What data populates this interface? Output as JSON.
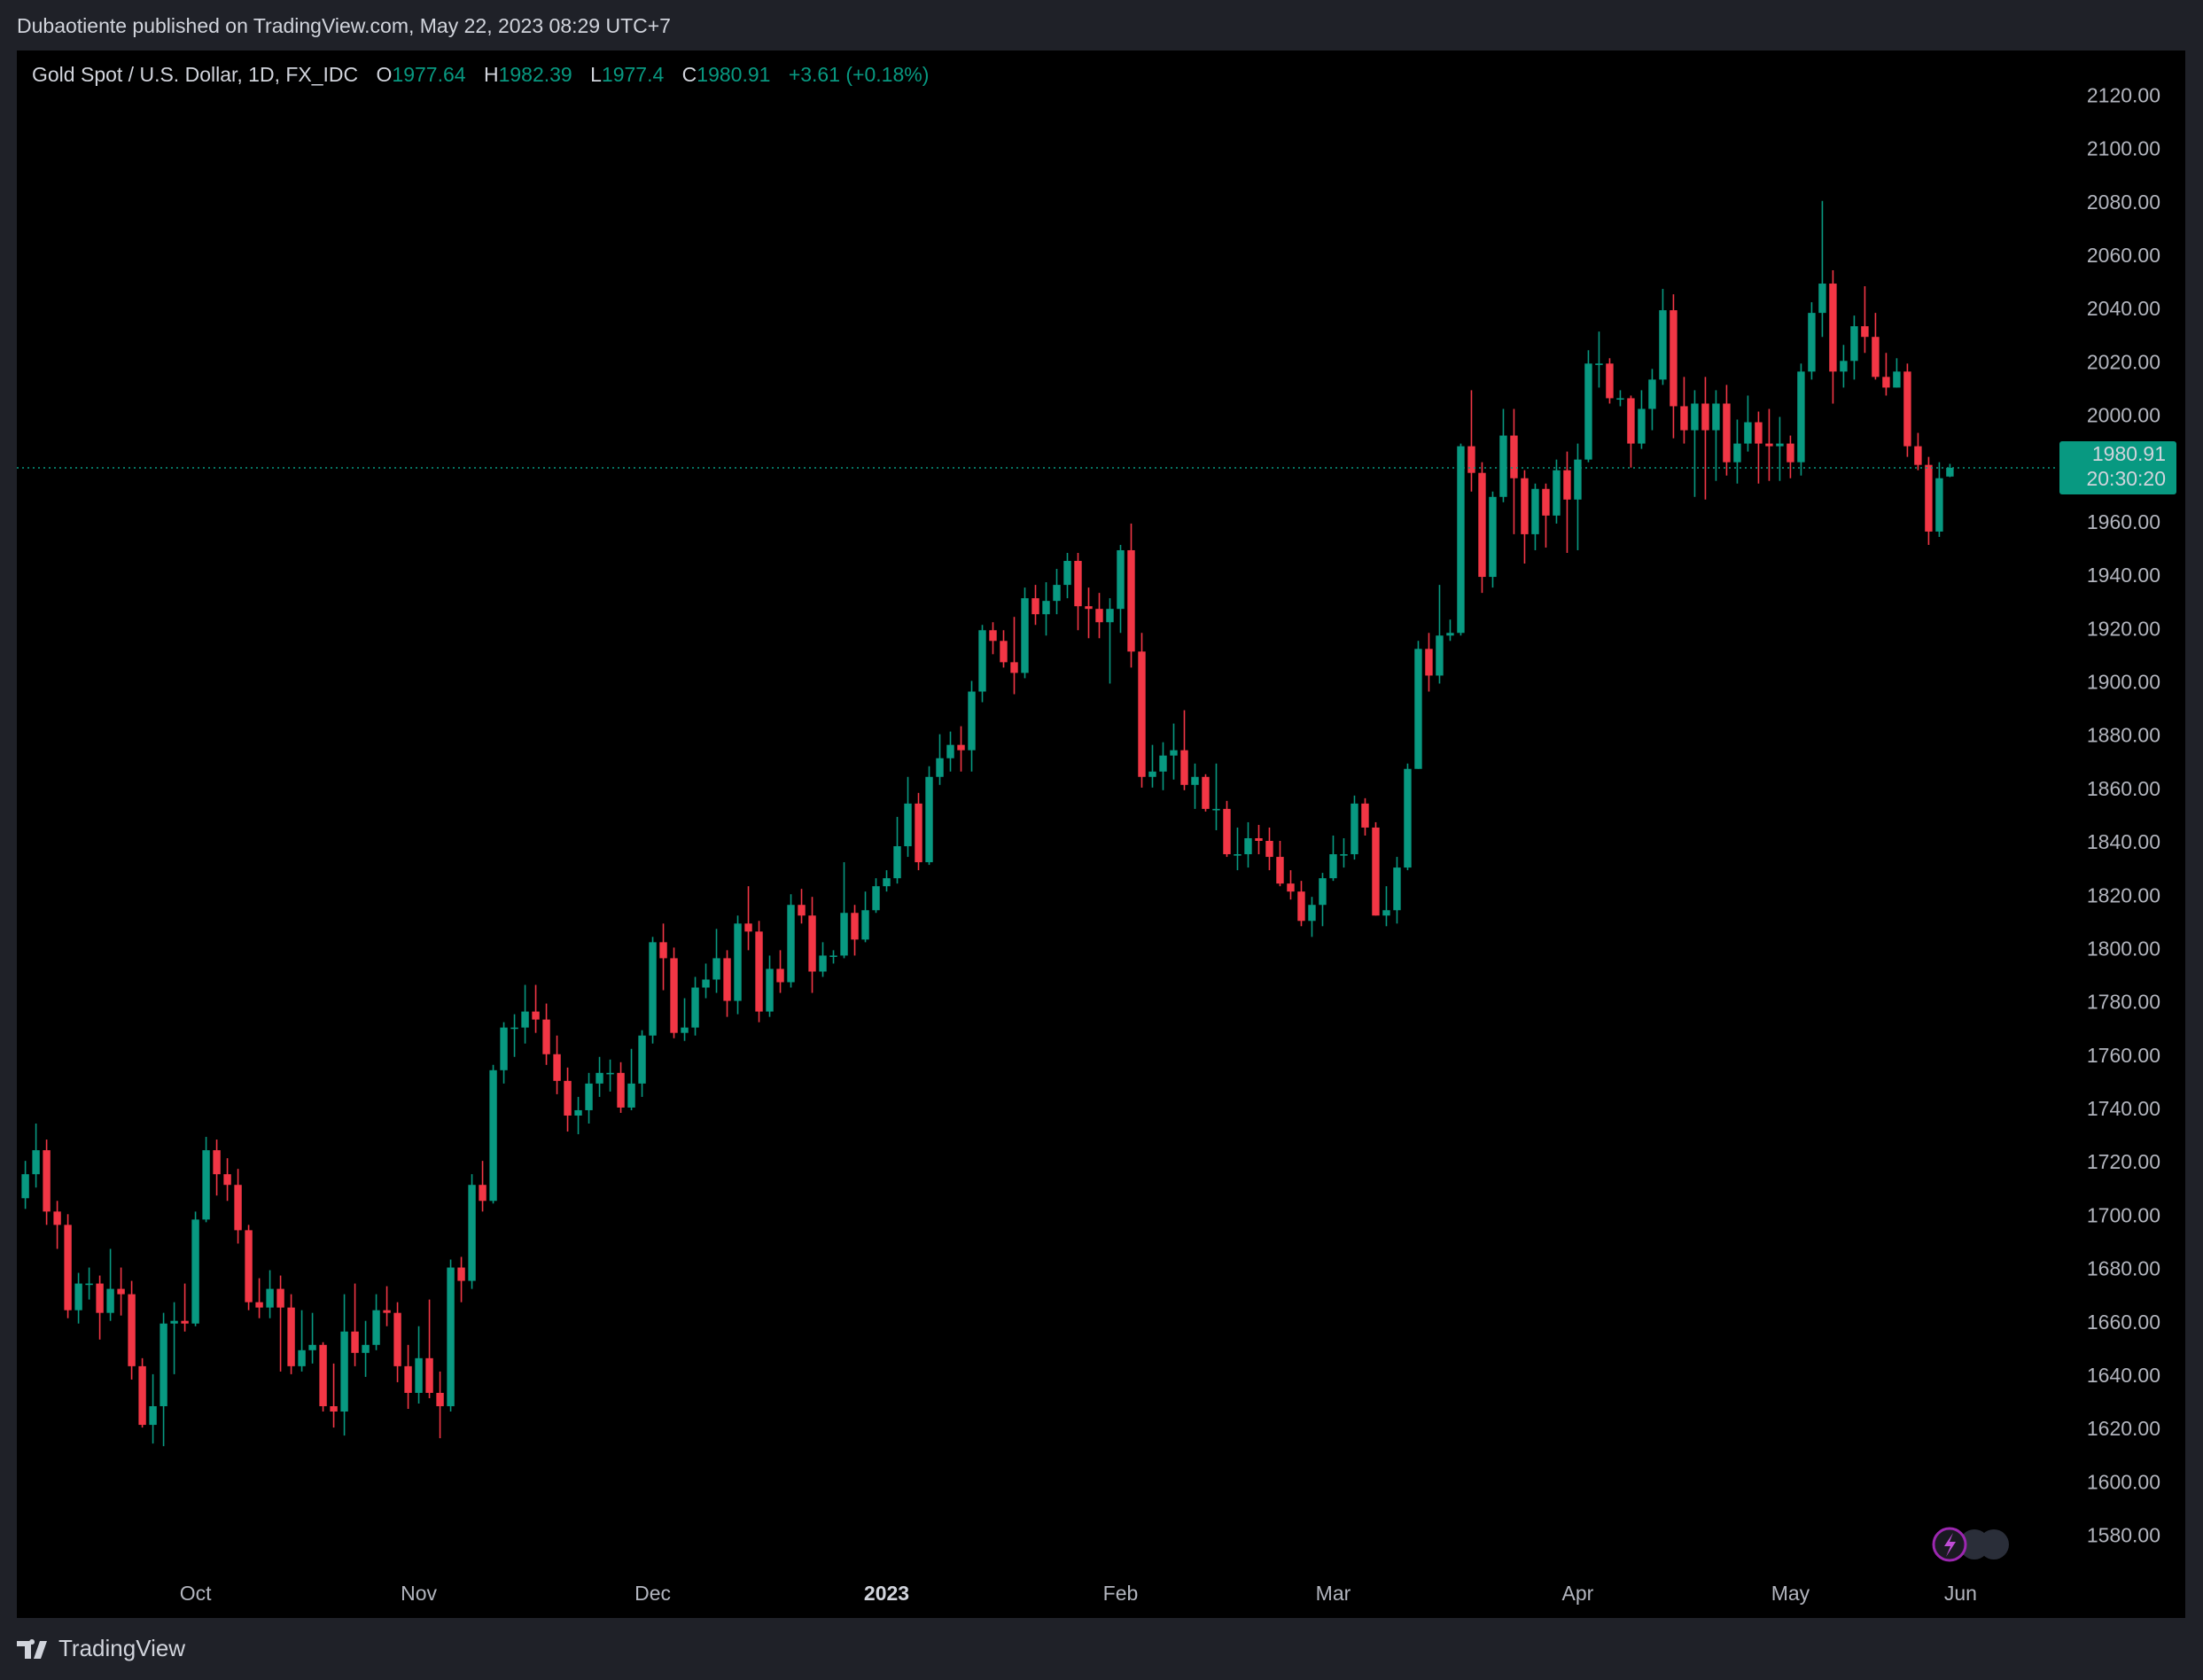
{
  "published": "Dubaotiente published on TradingView.com, May 22, 2023 08:29 UTC+7",
  "brand": "TradingView",
  "chart_data": {
    "type": "candlestick",
    "title": "Gold Spot / U.S. Dollar, 1D, FX_IDC",
    "ohlc_labels": [
      "O",
      "H",
      "L",
      "C"
    ],
    "change_label": "+3.61 (+0.18%)",
    "countdown": "20:30:20",
    "up_color": "#089981",
    "down_color": "#f23645",
    "open": [
      1707,
      1716,
      1725,
      1702,
      1697,
      1665,
      1675,
      1675,
      1664,
      1673,
      1671,
      1644,
      1622,
      1629,
      1660,
      1661,
      1660,
      1699,
      1725,
      1716,
      1712,
      1695,
      1668,
      1666,
      1673,
      1666,
      1644,
      1650,
      1652,
      1629,
      1627,
      1657,
      1649,
      1652,
      1665,
      1664,
      1644,
      1634,
      1647,
      1634,
      1629,
      1681,
      1676,
      1712,
      1706,
      1755,
      1771,
      1771,
      1777,
      1774,
      1761,
      1751,
      1738,
      1740,
      1750,
      1754,
      1754,
      1741,
      1750,
      1768,
      1803,
      1797,
      1769,
      1771,
      1786,
      1789,
      1797,
      1781,
      1810,
      1807,
      1777,
      1793,
      1788,
      1817,
      1813,
      1792,
      1798,
      1798,
      1814,
      1804,
      1815,
      1824,
      1827,
      1839,
      1855,
      1833,
      1865,
      1872,
      1877,
      1875,
      1897,
      1920,
      1916,
      1908,
      1904,
      1932,
      1926,
      1931,
      1937,
      1946,
      1929,
      1928,
      1923,
      1928,
      1950,
      1912,
      1865,
      1867,
      1873,
      1875,
      1862,
      1865,
      1853,
      1853,
      1836,
      1836,
      1842,
      1841,
      1835,
      1825,
      1822,
      1811,
      1817,
      1827,
      1836,
      1836,
      1855,
      1846,
      1813,
      1815,
      1831,
      1868,
      1913,
      1903,
      1918,
      1919,
      1989,
      1979,
      1940,
      1970,
      1993,
      1977,
      1956,
      1973,
      1963,
      1980,
      1969,
      1984,
      2020,
      2020,
      2007,
      2007,
      1990,
      2003,
      2014,
      2040,
      2004,
      1995,
      2005,
      1995,
      2005,
      1983,
      1990,
      1998,
      1990,
      1989,
      1990,
      1983,
      2017,
      2039,
      2050,
      2017,
      2021,
      2034,
      2030,
      2015,
      2011,
      2017,
      1989,
      1982,
      1957,
      1977.64
    ],
    "high": [
      1721,
      1735,
      1729,
      1706,
      1701,
      1679,
      1681,
      1678,
      1688,
      1681,
      1676,
      1647,
      1641,
      1664,
      1668,
      1675,
      1702,
      1730,
      1729,
      1722,
      1718,
      1697,
      1677,
      1680,
      1678,
      1671,
      1665,
      1664,
      1653,
      1645,
      1671,
      1675,
      1661,
      1671,
      1674,
      1668,
      1652,
      1659,
      1669,
      1642,
      1684,
      1685,
      1716,
      1721,
      1757,
      1773,
      1776,
      1787,
      1787,
      1780,
      1768,
      1756,
      1745,
      1754,
      1760,
      1759,
      1758,
      1763,
      1770,
      1805,
      1810,
      1801,
      1782,
      1790,
      1795,
      1808,
      1800,
      1813,
      1824,
      1811,
      1798,
      1800,
      1821,
      1823,
      1820,
      1803,
      1800,
      1833,
      1817,
      1822,
      1827,
      1830,
      1850,
      1865,
      1859,
      1869,
      1881,
      1882,
      1884,
      1901,
      1922,
      1923,
      1920,
      1925,
      1936,
      1937,
      1938,
      1943,
      1949,
      1949,
      1936,
      1934,
      1932,
      1952,
      1960,
      1919,
      1877,
      1878,
      1885,
      1890,
      1870,
      1866,
      1870,
      1856,
      1846,
      1848,
      1847,
      1846,
      1841,
      1830,
      1826,
      1820,
      1829,
      1843,
      1842,
      1858,
      1857,
      1848,
      1824,
      1835,
      1870,
      1916,
      1919,
      1937,
      1924,
      1990,
      2010,
      1983,
      1972,
      2003,
      2003,
      1980,
      1975,
      1975,
      1984,
      1987,
      1990,
      2025,
      2032,
      2022,
      2010,
      2008,
      2010,
      2018,
      2048,
      2046,
      2015,
      2010,
      2015,
      2010,
      2012,
      1999,
      2008,
      2002,
      2003,
      2000,
      1993,
      2020,
      2043,
      2081,
      2055,
      2027,
      2038,
      2049,
      2039,
      2024,
      2022,
      2020,
      1994,
      1985,
      1983,
      1982.39
    ],
    "low": [
      1703,
      1711,
      1697,
      1688,
      1662,
      1660,
      1669,
      1654,
      1661,
      1663,
      1639,
      1621,
      1615,
      1614,
      1641,
      1657,
      1659,
      1698,
      1708,
      1706,
      1690,
      1665,
      1662,
      1662,
      1642,
      1641,
      1642,
      1645,
      1627,
      1621,
      1618,
      1644,
      1640,
      1650,
      1659,
      1638,
      1628,
      1630,
      1632,
      1617,
      1627,
      1668,
      1673,
      1702,
      1705,
      1750,
      1760,
      1765,
      1769,
      1757,
      1746,
      1732,
      1731,
      1735,
      1745,
      1747,
      1739,
      1740,
      1745,
      1765,
      1785,
      1767,
      1766,
      1768,
      1782,
      1784,
      1775,
      1776,
      1800,
      1773,
      1775,
      1784,
      1786,
      1810,
      1784,
      1790,
      1795,
      1797,
      1798,
      1803,
      1814,
      1822,
      1825,
      1835,
      1830,
      1832,
      1862,
      1867,
      1867,
      1867,
      1893,
      1911,
      1906,
      1896,
      1902,
      1922,
      1918,
      1926,
      1932,
      1920,
      1917,
      1917,
      1900,
      1919,
      1906,
      1861,
      1861,
      1860,
      1864,
      1860,
      1853,
      1852,
      1845,
      1835,
      1830,
      1831,
      1836,
      1830,
      1824,
      1819,
      1809,
      1805,
      1809,
      1826,
      1831,
      1834,
      1843,
      1813,
      1809,
      1810,
      1830,
      1868,
      1897,
      1900,
      1916,
      1918,
      1972,
      1934,
      1936,
      1968,
      1956,
      1945,
      1950,
      1951,
      1960,
      1949,
      1950,
      1983,
      2011,
      2005,
      2004,
      1981,
      1988,
      1995,
      2012,
      1992,
      1990,
      1970,
      1969,
      1976,
      1978,
      1975,
      1987,
      1975,
      1976,
      1976,
      1977,
      1978,
      2014,
      2030,
      2005,
      2011,
      2014,
      2024,
      2014,
      2008,
      2011,
      1985,
      1980,
      1952,
      1955,
      1977.4
    ],
    "close": [
      1716,
      1725,
      1702,
      1697,
      1665,
      1675,
      1675,
      1664,
      1673,
      1671,
      1644,
      1622,
      1629,
      1660,
      1661,
      1660,
      1699,
      1725,
      1716,
      1712,
      1695,
      1668,
      1666,
      1673,
      1666,
      1644,
      1650,
      1652,
      1629,
      1627,
      1657,
      1649,
      1652,
      1665,
      1664,
      1644,
      1634,
      1647,
      1634,
      1629,
      1681,
      1676,
      1712,
      1706,
      1755,
      1771,
      1771,
      1777,
      1774,
      1761,
      1751,
      1738,
      1740,
      1750,
      1754,
      1754,
      1741,
      1750,
      1768,
      1803,
      1797,
      1769,
      1771,
      1786,
      1789,
      1797,
      1781,
      1810,
      1807,
      1777,
      1793,
      1788,
      1817,
      1813,
      1792,
      1798,
      1798,
      1814,
      1804,
      1815,
      1824,
      1827,
      1839,
      1855,
      1833,
      1865,
      1872,
      1877,
      1875,
      1897,
      1920,
      1916,
      1908,
      1904,
      1932,
      1926,
      1931,
      1937,
      1946,
      1929,
      1928,
      1923,
      1928,
      1950,
      1912,
      1865,
      1867,
      1873,
      1875,
      1862,
      1865,
      1853,
      1853,
      1836,
      1836,
      1842,
      1841,
      1835,
      1825,
      1822,
      1811,
      1817,
      1827,
      1836,
      1836,
      1855,
      1846,
      1813,
      1815,
      1831,
      1868,
      1913,
      1903,
      1918,
      1919,
      1989,
      1979,
      1940,
      1970,
      1993,
      1977,
      1956,
      1973,
      1963,
      1980,
      1969,
      1984,
      2020,
      2020,
      2007,
      2007,
      1990,
      2003,
      2014,
      2040,
      2004,
      1995,
      2005,
      1995,
      2005,
      1983,
      1990,
      1998,
      1990,
      1989,
      1990,
      1983,
      2017,
      2039,
      2050,
      2017,
      2021,
      2034,
      2030,
      2015,
      2011,
      2017,
      1989,
      1982,
      1957,
      1977,
      1980.91
    ],
    "xlim": [
      -0.8,
      190.8
    ],
    "xticks": [
      {
        "value": 16,
        "label": "Oct"
      },
      {
        "value": 37,
        "label": "Nov"
      },
      {
        "value": 59,
        "label": "Dec"
      },
      {
        "value": 81,
        "label": "2023"
      },
      {
        "value": 103,
        "label": "Feb"
      },
      {
        "value": 123,
        "label": "Mar"
      },
      {
        "value": 146,
        "label": "Apr"
      },
      {
        "value": 166,
        "label": "May"
      },
      {
        "value": 182,
        "label": "Jun"
      }
    ],
    "ylim": [
      1566.2,
      2137.4
    ],
    "yticks": [
      {
        "value": 1580,
        "label": "1580.00"
      },
      {
        "value": 1600,
        "label": "1600.00"
      },
      {
        "value": 1620,
        "label": "1620.00"
      },
      {
        "value": 1640,
        "label": "1640.00"
      },
      {
        "value": 1660,
        "label": "1660.00"
      },
      {
        "value": 1680,
        "label": "1680.00"
      },
      {
        "value": 1700,
        "label": "1700.00"
      },
      {
        "value": 1720,
        "label": "1720.00"
      },
      {
        "value": 1740,
        "label": "1740.00"
      },
      {
        "value": 1760,
        "label": "1760.00"
      },
      {
        "value": 1780,
        "label": "1780.00"
      },
      {
        "value": 1800,
        "label": "1800.00"
      },
      {
        "value": 1820,
        "label": "1820.00"
      },
      {
        "value": 1840,
        "label": "1840.00"
      },
      {
        "value": 1860,
        "label": "1860.00"
      },
      {
        "value": 1880,
        "label": "1880.00"
      },
      {
        "value": 1900,
        "label": "1900.00"
      },
      {
        "value": 1920,
        "label": "1920.00"
      },
      {
        "value": 1940,
        "label": "1940.00"
      },
      {
        "value": 1960,
        "label": "1960.00"
      },
      {
        "value": 1980,
        "label": "1980.00"
      },
      {
        "value": 2000,
        "label": "2000.00"
      },
      {
        "value": 2020,
        "label": "2020.00"
      },
      {
        "value": 2040,
        "label": "2040.00"
      },
      {
        "value": 2060,
        "label": "2060.00"
      },
      {
        "value": 2080,
        "label": "2080.00"
      },
      {
        "value": 2100,
        "label": "2100.00"
      },
      {
        "value": 2120,
        "label": "2120.00"
      }
    ],
    "grid": false
  }
}
